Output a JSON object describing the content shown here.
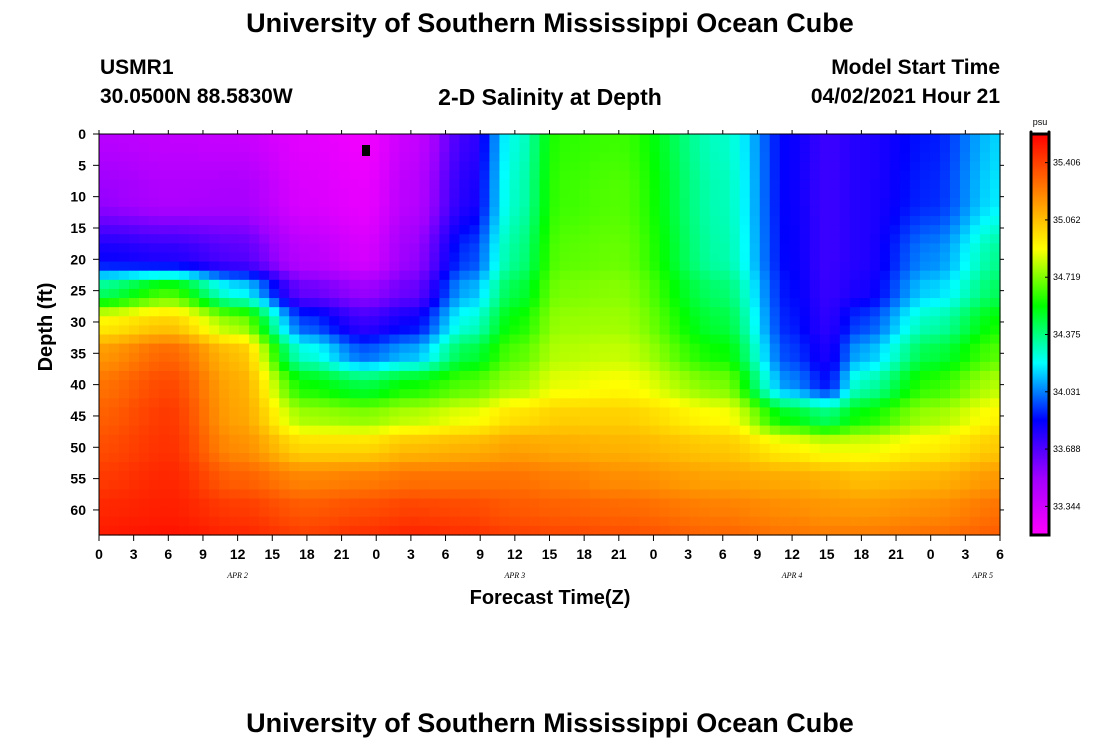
{
  "header": {
    "title_top": "University of Southern Mississippi Ocean Cube",
    "station_id": "USMR1",
    "station_coords": "30.0500N  88.5830W",
    "plot_title": "2-D Salinity at Depth",
    "model_start_label": "Model Start Time",
    "model_start_value": "04/02/2021 Hour 21"
  },
  "footer": {
    "title_bottom": "University of Southern Mississippi Ocean Cube"
  },
  "chart_data": {
    "type": "heatmap",
    "title": "2-D Salinity at Depth",
    "xlabel": "Forecast Time(Z)",
    "ylabel": "Depth (ft)",
    "x_tick_labels": [
      "0",
      "3",
      "6",
      "9",
      "12",
      "15",
      "18",
      "21",
      "0",
      "3",
      "6",
      "9",
      "12",
      "15",
      "18",
      "21",
      "0",
      "3",
      "6",
      "9",
      "12",
      "15",
      "18",
      "21",
      "0",
      "3",
      "6"
    ],
    "x_day_labels": [
      {
        "label": "APR 2",
        "tick_index": 4
      },
      {
        "label": "APR 3",
        "tick_index": 12
      },
      {
        "label": "APR 4",
        "tick_index": 20
      },
      {
        "label": "APR 5",
        "tick_index": 25.5
      }
    ],
    "y_ticks": [
      0,
      5,
      10,
      15,
      20,
      25,
      30,
      35,
      40,
      45,
      50,
      55,
      60
    ],
    "ylim": [
      0,
      64
    ],
    "y_inverted": true,
    "x_range_hours": [
      0,
      78
    ],
    "colorbar": {
      "unit": "psu",
      "labels": [
        "35.406",
        "35.062",
        "34.719",
        "34.375",
        "34.031",
        "33.688",
        "33.344"
      ],
      "min": 33.2,
      "max": 35.55,
      "colors": [
        "#ff00ff",
        "#a000ff",
        "#0000ff",
        "#00ffff",
        "#00ff00",
        "#ffff00",
        "#ff8000",
        "#ff0000"
      ]
    },
    "columns_hours": [
      0,
      6,
      12,
      18,
      23,
      27,
      32,
      36,
      40,
      45,
      54,
      60,
      63,
      66,
      72,
      78
    ],
    "salinity_matrix_depth_rows": [
      0,
      10,
      20,
      25,
      30,
      35,
      40,
      45,
      50,
      55,
      60,
      64
    ],
    "salinity_values": [
      [
        33.45,
        33.42,
        33.4,
        33.3,
        33.25,
        33.4,
        33.75,
        34.25,
        34.6,
        34.62,
        34.28,
        33.85,
        33.75,
        33.8,
        33.9,
        34.15
      ],
      [
        33.55,
        33.48,
        33.5,
        33.33,
        33.28,
        33.45,
        33.8,
        34.28,
        34.62,
        34.65,
        34.3,
        33.85,
        33.75,
        33.8,
        33.92,
        34.18
      ],
      [
        33.85,
        33.8,
        33.7,
        33.45,
        33.35,
        33.55,
        33.95,
        34.35,
        34.66,
        34.68,
        34.32,
        33.86,
        33.75,
        33.8,
        34.05,
        34.35
      ],
      [
        34.4,
        34.62,
        34.2,
        33.65,
        33.55,
        33.65,
        34.1,
        34.45,
        34.7,
        34.72,
        34.4,
        33.88,
        33.76,
        33.82,
        34.15,
        34.42
      ],
      [
        34.9,
        35.0,
        34.72,
        33.95,
        33.75,
        33.85,
        34.25,
        34.55,
        34.74,
        34.75,
        34.46,
        33.9,
        33.78,
        33.95,
        34.3,
        34.55
      ],
      [
        35.15,
        35.28,
        35.05,
        34.25,
        34.0,
        34.1,
        34.45,
        34.65,
        34.78,
        34.8,
        34.55,
        33.95,
        33.82,
        34.1,
        34.45,
        34.65
      ],
      [
        35.25,
        35.36,
        35.1,
        34.55,
        34.45,
        34.55,
        34.65,
        34.75,
        34.85,
        34.88,
        34.7,
        34.05,
        33.9,
        34.3,
        34.6,
        34.78
      ],
      [
        35.3,
        35.4,
        35.12,
        34.75,
        34.72,
        34.78,
        34.85,
        34.95,
        35.0,
        35.0,
        34.88,
        34.5,
        34.4,
        34.55,
        34.75,
        34.9
      ],
      [
        35.35,
        35.42,
        35.18,
        34.98,
        34.98,
        35.05,
        35.08,
        35.12,
        35.1,
        35.08,
        35.02,
        34.9,
        34.85,
        34.85,
        34.92,
        35.02
      ],
      [
        35.4,
        35.45,
        35.3,
        35.2,
        35.22,
        35.25,
        35.25,
        35.25,
        35.22,
        35.18,
        35.12,
        35.1,
        35.08,
        35.05,
        35.08,
        35.15
      ],
      [
        35.45,
        35.47,
        35.4,
        35.32,
        35.35,
        35.38,
        35.36,
        35.32,
        35.3,
        35.28,
        35.22,
        35.18,
        35.16,
        35.15,
        35.18,
        35.25
      ],
      [
        35.48,
        35.5,
        35.45,
        35.38,
        35.42,
        35.45,
        35.42,
        35.38,
        35.36,
        35.34,
        35.28,
        35.24,
        35.22,
        35.22,
        35.25,
        35.3
      ]
    ]
  }
}
